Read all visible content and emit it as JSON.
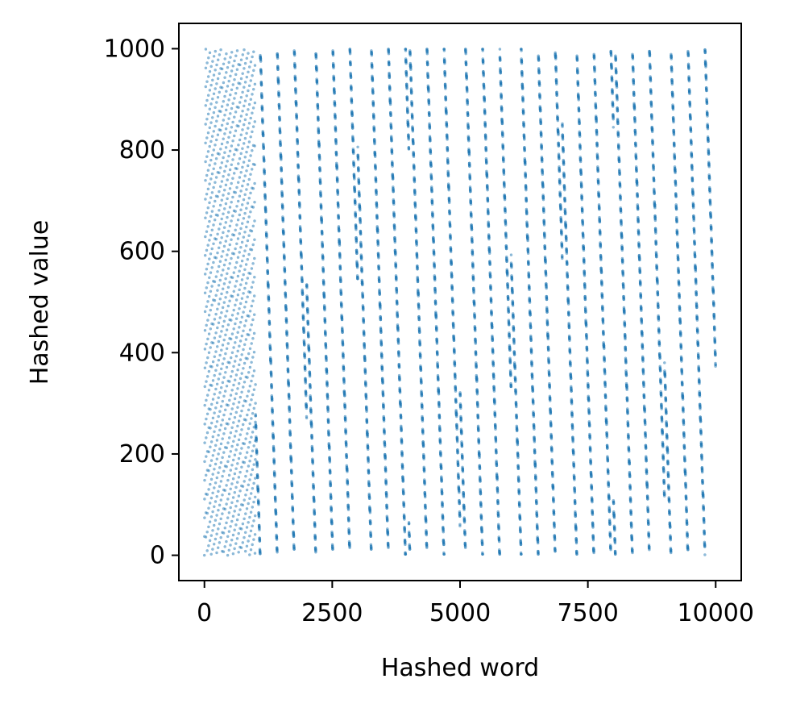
{
  "chart_data": {
    "type": "scatter",
    "title": "",
    "xlabel": "Hashed word",
    "ylabel": "Hashed value",
    "xlim": [
      -500,
      10500
    ],
    "ylim": [
      -50,
      1050
    ],
    "x_ticks": [
      {
        "value": 0,
        "label": "0"
      },
      {
        "value": 2500,
        "label": "2500"
      },
      {
        "value": 5000,
        "label": "5000"
      },
      {
        "value": 7500,
        "label": "7500"
      },
      {
        "value": 10000,
        "label": "10000"
      }
    ],
    "y_ticks": [
      {
        "value": 0,
        "label": "0"
      },
      {
        "value": 200,
        "label": "200"
      },
      {
        "value": 400,
        "label": "400"
      },
      {
        "value": 600,
        "label": "600"
      },
      {
        "value": 800,
        "label": "800"
      },
      {
        "value": 1000,
        "label": "1000"
      }
    ],
    "grid": false,
    "legend": "none",
    "series": [
      {
        "color": "#1f77b4",
        "opacity": 0.5,
        "points_note": "10000 points: x = 0..9999, y in 0..999 from a hash function"
      }
    ]
  }
}
